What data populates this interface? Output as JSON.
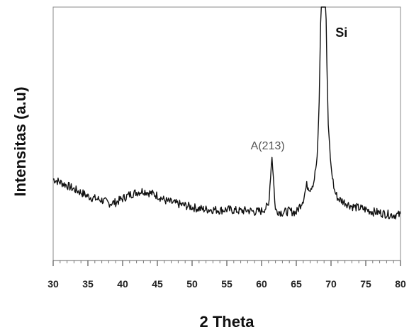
{
  "chart_data": {
    "type": "line",
    "title": "",
    "xlabel": "2 Theta",
    "ylabel": "Intensitas (a.u)",
    "xlim": [
      30,
      80
    ],
    "x_ticks": [
      "30",
      "35",
      "40",
      "45",
      "50",
      "55",
      "60",
      "65",
      "70",
      "75",
      "80"
    ],
    "grid": false,
    "legend": "none",
    "line_color": "#111111",
    "annotations": [
      {
        "text": "A(213)",
        "x": 61.5
      },
      {
        "text": "Si",
        "x": 69.0
      }
    ],
    "series": [
      {
        "x": [
          30,
          31,
          32,
          33,
          34,
          35,
          36,
          37,
          38,
          39,
          40,
          41,
          42,
          43,
          44,
          45,
          46,
          47,
          48,
          49,
          50,
          51,
          52,
          53,
          54,
          55,
          56,
          57,
          58,
          59,
          60,
          61,
          61.3,
          61.5,
          61.7,
          62,
          63,
          64,
          65,
          66,
          66.5,
          67,
          67.5,
          68,
          68.3,
          68.6,
          68.8,
          69,
          69.2,
          69.4,
          69.6,
          70,
          70.5,
          71,
          72,
          73,
          74,
          75,
          76,
          77,
          78,
          79,
          80
        ],
        "y": [
          0.7,
          0.66,
          0.62,
          0.57,
          0.53,
          0.48,
          0.45,
          0.43,
          0.39,
          0.4,
          0.45,
          0.5,
          0.53,
          0.55,
          0.52,
          0.49,
          0.43,
          0.4,
          0.38,
          0.36,
          0.34,
          0.32,
          0.31,
          0.31,
          0.3,
          0.31,
          0.3,
          0.29,
          0.3,
          0.28,
          0.29,
          0.36,
          0.75,
          1.0,
          0.72,
          0.3,
          0.27,
          0.29,
          0.27,
          0.44,
          0.62,
          0.58,
          0.66,
          0.95,
          1.7,
          3.2,
          3.6,
          3.5,
          3.3,
          2.2,
          1.4,
          0.85,
          0.55,
          0.45,
          0.4,
          0.35,
          0.33,
          0.31,
          0.28,
          0.27,
          0.25,
          0.24,
          0.24
        ]
      }
    ]
  }
}
